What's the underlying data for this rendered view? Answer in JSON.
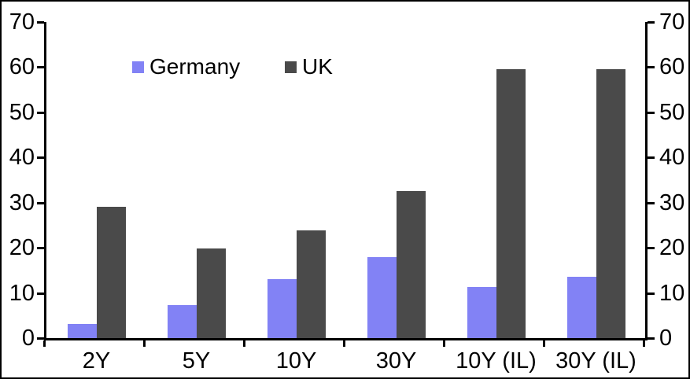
{
  "chart_data": {
    "type": "bar",
    "title": "",
    "categories": [
      "2Y",
      "5Y",
      "10Y",
      "30Y",
      "10Y (IL)",
      "30Y (IL)"
    ],
    "series": [
      {
        "name": "Germany",
        "color": "#8282f5",
        "values": [
          3.2,
          7.4,
          13.0,
          18.0,
          11.3,
          13.6
        ]
      },
      {
        "name": "UK",
        "color": "#4a4a4a",
        "values": [
          29.0,
          19.8,
          23.8,
          32.6,
          59.5,
          59.5
        ]
      }
    ],
    "xlabel": "",
    "ylabel": "",
    "y_axis": {
      "min": 0,
      "max": 70,
      "tick_step": 10,
      "ticks": [
        0,
        10,
        20,
        30,
        40,
        50,
        60,
        70
      ],
      "sides": [
        "left",
        "right"
      ]
    },
    "grid": false,
    "legend_position": "top-center"
  },
  "legend": {
    "items": [
      {
        "label": "Germany",
        "color": "#8282f5"
      },
      {
        "label": "UK",
        "color": "#4a4a4a"
      }
    ]
  },
  "colors": {
    "axis": "#000000",
    "background": "#ffffff",
    "frame_border": "#000000",
    "text": "#000000"
  }
}
